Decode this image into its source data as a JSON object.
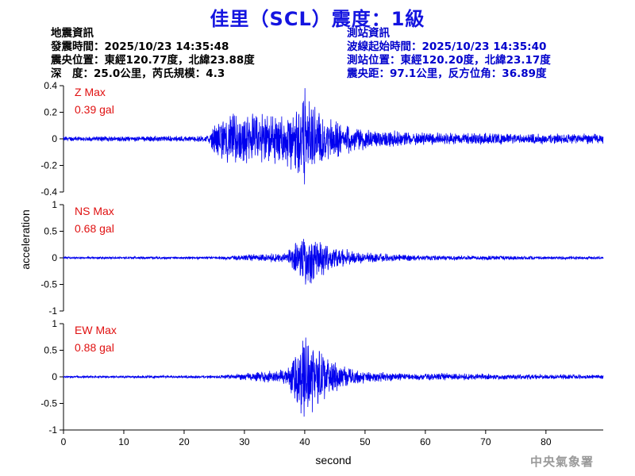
{
  "title": "佳里（SCL）震度：1級",
  "quake_info": {
    "heading": "地震資訊",
    "origin_time": "發震時間：2025/10/23 14:35:48",
    "epicenter": "震央位置：東經120.77度，北緯23.88度",
    "depth_magnitude": "深　度：25.0公里，芮氏規模：4.3"
  },
  "station_info": {
    "heading": "測站資訊",
    "wave_start": "波線起始時間：2025/10/23 14:35:40",
    "location": "測站位置：東經120.20度，北緯23.17度",
    "distance": "震央距：97.1公里，反方位角：36.89度"
  },
  "watermark": "中央氣象署",
  "colors": {
    "trace": "#0000ee",
    "title": "#1414e0",
    "max_label": "#e01010",
    "station_text": "#0000cc"
  },
  "chart_data": [
    {
      "type": "line",
      "component": "Z",
      "max_label": "Z Max",
      "max_value": "0.39 gal",
      "ylim": [
        -0.4,
        0.4
      ],
      "yticks": [
        0.4,
        0.2,
        0,
        -0.2,
        -0.4
      ],
      "ytick_labels": [
        "0.4",
        "0.2",
        "0",
        "-0.2",
        "-0.4"
      ],
      "x_range": [
        0,
        89.5
      ],
      "envelope": [
        [
          0,
          0.02
        ],
        [
          24,
          0.025
        ],
        [
          25,
          0.12
        ],
        [
          27,
          0.2
        ],
        [
          32,
          0.2
        ],
        [
          36,
          0.22
        ],
        [
          38,
          0.28
        ],
        [
          40,
          0.39
        ],
        [
          42,
          0.26
        ],
        [
          46,
          0.13
        ],
        [
          52,
          0.07
        ],
        [
          60,
          0.05
        ],
        [
          89.5,
          0.04
        ]
      ]
    },
    {
      "type": "line",
      "component": "NS",
      "max_label": "NS Max",
      "max_value": "0.68 gal",
      "ylim": [
        -1,
        1
      ],
      "yticks": [
        1,
        0.5,
        0,
        -0.5,
        -1
      ],
      "ytick_labels": [
        "1",
        "0.5",
        "0",
        "-0.5",
        "-1"
      ],
      "x_range": [
        0,
        89.5
      ],
      "envelope": [
        [
          0,
          0.02
        ],
        [
          25,
          0.03
        ],
        [
          30,
          0.06
        ],
        [
          37,
          0.1
        ],
        [
          38.5,
          0.35
        ],
        [
          40,
          0.68
        ],
        [
          42,
          0.45
        ],
        [
          45,
          0.22
        ],
        [
          50,
          0.1
        ],
        [
          60,
          0.05
        ],
        [
          89.5,
          0.03
        ]
      ]
    },
    {
      "type": "line",
      "component": "EW",
      "max_label": "EW Max",
      "max_value": "0.88 gal",
      "ylim": [
        -1,
        1
      ],
      "yticks": [
        1,
        0.5,
        0,
        -0.5,
        -1
      ],
      "ytick_labels": [
        "1",
        "0.5",
        "0",
        "-0.5",
        "-1"
      ],
      "x_range": [
        0,
        89.5
      ],
      "envelope": [
        [
          0,
          0.02
        ],
        [
          25,
          0.03
        ],
        [
          30,
          0.07
        ],
        [
          37,
          0.15
        ],
        [
          38.5,
          0.5
        ],
        [
          40,
          0.88
        ],
        [
          42,
          0.7
        ],
        [
          44,
          0.35
        ],
        [
          48,
          0.15
        ],
        [
          55,
          0.08
        ],
        [
          89.5,
          0.04
        ]
      ]
    }
  ],
  "x_axis": {
    "label": "second",
    "ticks": [
      0,
      10,
      20,
      30,
      40,
      50,
      60,
      70,
      80
    ],
    "tick_labels": [
      "0",
      "10",
      "20",
      "30",
      "40",
      "50",
      "60",
      "70",
      "80"
    ]
  },
  "y_axis": {
    "label": "acceleration"
  }
}
